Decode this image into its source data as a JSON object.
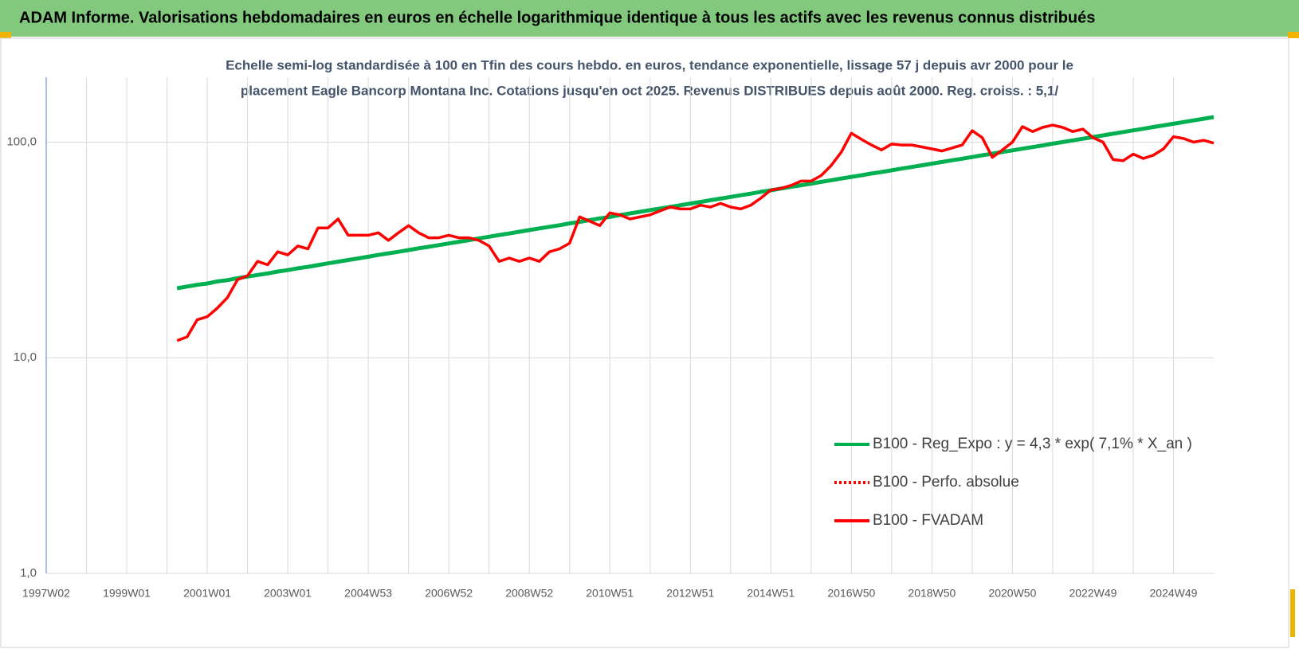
{
  "header": {
    "title": "ADAM Informe. Valorisations hebdomadaires en euros en échelle logarithmique identique à tous les actifs avec les revenus connus distribués"
  },
  "chart_data": {
    "type": "line",
    "title": [
      "Echelle semi-log standardisée à 100 en Tfin des cours hebdo. en euros, tendance exponentielle, lissage 57 j depuis avr 2000 pour le",
      "placement Eagle Bancorp Montana Inc.  Cotations jusqu'en oct 2025.  Revenus DISTRIBUES depuis août 2000. Reg. croiss. : 5,1/"
    ],
    "categories": [
      "1997W02",
      null,
      null,
      null,
      null,
      null,
      null,
      null,
      "1999W01",
      null,
      null,
      null,
      null,
      null,
      null,
      null,
      "2001W01",
      null,
      null,
      null,
      null,
      null,
      null,
      null,
      "2003W01",
      null,
      null,
      null,
      null,
      null,
      null,
      null,
      "2004W53",
      null,
      null,
      null,
      null,
      null,
      null,
      null,
      "2006W52",
      null,
      null,
      null,
      null,
      null,
      null,
      null,
      "2008W52",
      null,
      null,
      null,
      null,
      null,
      null,
      null,
      "2010W51",
      null,
      null,
      null,
      null,
      null,
      null,
      null,
      "2012W51",
      null,
      null,
      null,
      null,
      null,
      null,
      null,
      "2014W51",
      null,
      null,
      null,
      null,
      null,
      null,
      null,
      "2016W50",
      null,
      null,
      null,
      null,
      null,
      null,
      null,
      "2018W50",
      null,
      null,
      null,
      null,
      null,
      null,
      null,
      "2020W50",
      null,
      null,
      null,
      null,
      null,
      null,
      null,
      "2022W49",
      null,
      null,
      null,
      null,
      null,
      null,
      null,
      "2024W49",
      null,
      null,
      null,
      null
    ],
    "series": [
      {
        "name": "B100 - Reg_Expo : y = 4,3 * exp( 7,1% *  X_an )",
        "color": "#00b050",
        "line_style": "solid",
        "values": [
          null,
          null,
          null,
          null,
          null,
          null,
          null,
          null,
          null,
          null,
          null,
          null,
          null,
          21.0,
          21.4,
          21.8,
          22.1,
          22.6,
          22.9,
          23.4,
          23.8,
          24.2,
          24.6,
          25.1,
          25.5,
          26.0,
          26.4,
          26.9,
          27.4,
          27.9,
          28.4,
          28.9,
          29.4,
          30.0,
          30.5,
          31.0,
          31.6,
          32.2,
          32.7,
          33.3,
          33.9,
          34.5,
          35.1,
          35.8,
          36.4,
          37.1,
          37.7,
          38.4,
          39.1,
          39.8,
          40.5,
          41.2,
          42.0,
          42.7,
          43.5,
          44.3,
          45.0,
          45.9,
          46.7,
          47.5,
          48.4,
          49.2,
          50.1,
          51.0,
          51.9,
          52.8,
          53.8,
          54.7,
          55.7,
          56.7,
          57.7,
          58.8,
          59.8,
          60.9,
          62.0,
          63.1,
          64.2,
          65.4,
          66.6,
          67.8,
          69.0,
          70.2,
          71.5,
          72.7,
          74.0,
          75.4,
          76.7,
          78.1,
          79.5,
          80.9,
          82.4,
          83.8,
          85.3,
          86.9,
          88.4,
          90.0,
          91.6,
          93.3,
          94.9,
          96.6,
          98.4,
          100.1,
          101.9,
          103.7,
          105.6,
          107.5,
          109.4,
          111.4,
          113.4,
          115.4,
          117.5,
          119.6,
          121.7,
          123.9,
          126.1,
          128.4,
          130.7
        ]
      },
      {
        "name": "B100 - Perfo. absolue",
        "color": "#ff0000",
        "line_style": "dotted",
        "values": [
          null,
          null,
          null,
          null,
          null,
          null,
          null,
          null,
          null,
          null,
          null,
          null,
          null,
          null,
          null,
          null,
          null,
          null,
          null,
          null,
          null,
          null,
          null,
          null,
          null,
          null,
          null,
          null,
          null,
          null,
          null,
          null,
          null,
          null,
          null,
          null,
          null,
          null,
          null,
          null,
          null,
          null,
          null,
          null,
          null,
          null,
          null,
          null,
          null,
          null,
          null,
          null,
          null,
          null,
          null,
          null,
          null,
          null,
          null,
          null,
          null,
          null,
          null,
          null,
          null,
          null,
          null,
          null,
          null,
          null,
          null,
          null,
          null,
          null,
          null,
          null,
          null,
          null,
          null,
          null,
          null,
          null,
          null,
          null,
          null,
          null,
          null,
          null,
          null,
          null,
          null,
          null,
          null,
          null,
          null,
          null,
          null,
          null,
          null,
          null,
          null,
          null,
          null,
          null,
          null,
          null,
          null,
          null,
          null,
          null,
          null,
          null,
          null,
          null,
          null,
          null,
          null
        ]
      },
      {
        "name": "B100 - FVADAM",
        "color": "#ff0000",
        "line_style": "solid",
        "values": [
          null,
          null,
          null,
          null,
          null,
          null,
          null,
          null,
          null,
          null,
          null,
          null,
          null,
          12,
          12.5,
          15,
          15.5,
          17,
          19,
          23,
          24,
          28,
          27,
          31,
          30,
          33,
          32,
          40,
          40,
          44,
          37,
          37,
          37,
          38,
          35,
          38,
          41,
          38,
          36,
          36,
          37,
          36,
          36,
          35,
          33,
          28,
          29,
          28,
          29,
          28,
          31,
          32,
          34,
          45,
          43,
          41,
          47,
          46,
          44,
          45,
          46,
          48,
          50,
          49,
          49,
          51,
          50,
          52,
          50,
          49,
          51,
          55,
          60,
          61,
          63,
          66,
          66,
          70,
          78,
          90,
          110,
          103,
          97,
          92,
          98,
          97,
          97,
          95,
          93,
          91,
          94,
          97,
          113,
          105,
          85,
          92,
          100,
          118,
          112,
          117,
          120,
          117,
          112,
          115,
          105,
          100,
          83,
          82,
          88,
          84,
          87,
          93,
          106,
          104,
          100,
          102,
          99
        ]
      }
    ],
    "log_scale": true,
    "ylim": [
      1,
      200
    ],
    "yticks": [
      {
        "value": 1,
        "label": "1,0"
      },
      {
        "value": 10,
        "label": "10,0"
      },
      {
        "value": 100,
        "label": "100,0"
      }
    ],
    "grid": true,
    "legend_position": "right"
  }
}
